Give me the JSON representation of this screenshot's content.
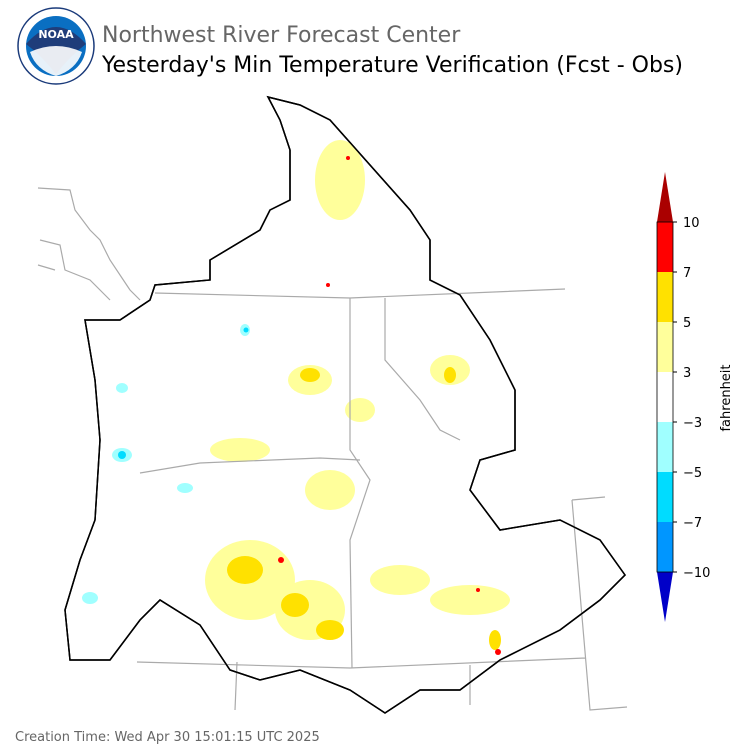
{
  "header": {
    "logo": "NOAA",
    "org": "Northwest River Forecast Center",
    "title": "Yesterday's Min Temperature Verification (Fcst - Obs)"
  },
  "colorbar": {
    "label": "fahrenheit",
    "ticks": [
      {
        "value": -10,
        "label": "−10"
      },
      {
        "value": -7,
        "label": "−7"
      },
      {
        "value": -5,
        "label": "−5"
      },
      {
        "value": -3,
        "label": "−3"
      },
      3,
      5,
      7,
      10
    ],
    "colors": [
      "#0096ff",
      "#00dcff",
      "#a0ffff",
      "#ffffff",
      "#ffff9b",
      "#ffe100",
      "#ff0000"
    ],
    "under_color": "#0000c8",
    "over_color": "#aa0000"
  },
  "footer": {
    "creation_time": "Creation Time: Wed Apr 30 15:01:15 UTC 2025"
  }
}
